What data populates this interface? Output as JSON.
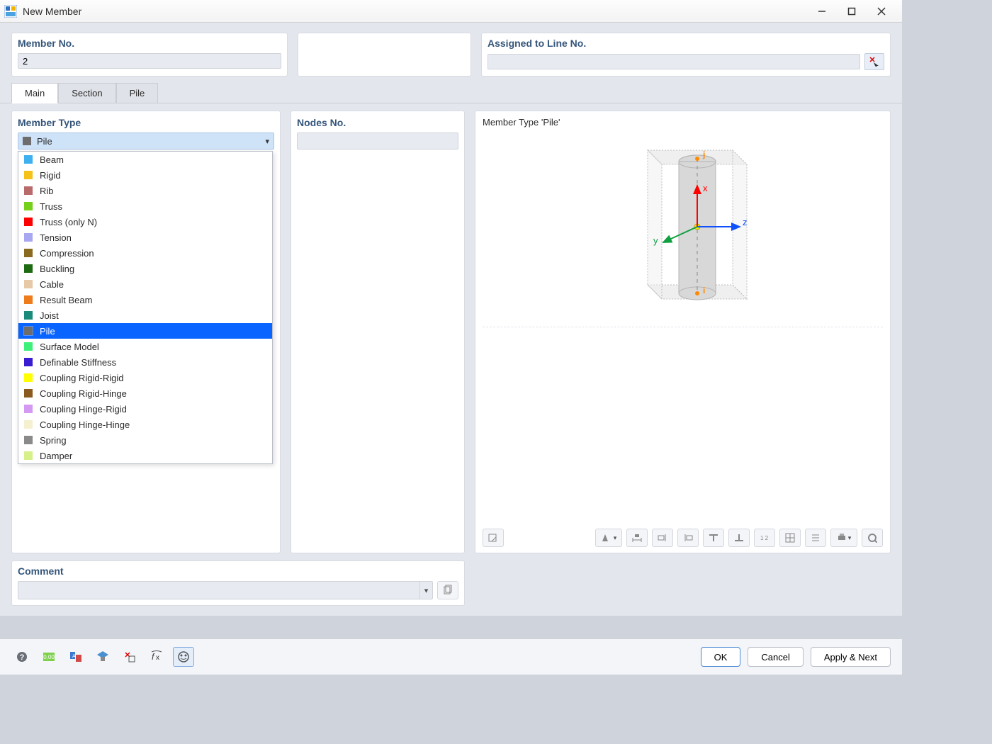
{
  "window": {
    "title": "New Member"
  },
  "top": {
    "member_no_label": "Member No.",
    "member_no_value": "2",
    "assigned_label": "Assigned to Line No.",
    "assigned_value": ""
  },
  "tabs": [
    {
      "label": "Main",
      "active": true
    },
    {
      "label": "Section",
      "active": false
    },
    {
      "label": "Pile",
      "active": false
    }
  ],
  "member_type": {
    "title": "Member Type",
    "selected_label": "Pile",
    "selected_color": "#6d6d6d",
    "options": [
      {
        "label": "Beam",
        "color": "#3eb0f0"
      },
      {
        "label": "Rigid",
        "color": "#f5c21a"
      },
      {
        "label": "Rib",
        "color": "#b96a6a"
      },
      {
        "label": "Truss",
        "color": "#74d01a"
      },
      {
        "label": "Truss (only N)",
        "color": "#ff0000"
      },
      {
        "label": "Tension",
        "color": "#a8a8f2"
      },
      {
        "label": "Compression",
        "color": "#8a6a1f"
      },
      {
        "label": "Buckling",
        "color": "#1e6a12"
      },
      {
        "label": "Cable",
        "color": "#e6caa8"
      },
      {
        "label": "Result Beam",
        "color": "#ee7b1c"
      },
      {
        "label": "Joist",
        "color": "#1a8a7a"
      },
      {
        "label": "Pile",
        "color": "#6d6d6d",
        "selected": true
      },
      {
        "label": "Surface Model",
        "color": "#3ef07a"
      },
      {
        "label": "Definable Stiffness",
        "color": "#3a1dd0"
      },
      {
        "label": "Coupling Rigid-Rigid",
        "color": "#ffff00"
      },
      {
        "label": "Coupling Rigid-Hinge",
        "color": "#8a5a1f"
      },
      {
        "label": "Coupling Hinge-Rigid",
        "color": "#d49af2"
      },
      {
        "label": "Coupling Hinge-Hinge",
        "color": "#f4f0d0"
      },
      {
        "label": "Spring",
        "color": "#8a8a8a"
      },
      {
        "label": "Damper",
        "color": "#d6f08a"
      }
    ]
  },
  "nodes": {
    "title": "Nodes No.",
    "value": ""
  },
  "preview": {
    "title": "Member Type 'Pile'",
    "axis_labels": {
      "x": "x",
      "y": "y",
      "z": "z",
      "i": "i",
      "j": "j"
    },
    "colors": {
      "box": "#efefef",
      "box_border": "#bdbdbd",
      "cylinder": "#d8d8d8",
      "cylinder_edge": "#b5b5b5",
      "x_axis": "#ff0000",
      "y_axis": "#10a040",
      "z_axis": "#1050ff",
      "node": "#ff8a00",
      "center": "#ffe600"
    }
  },
  "right_tools": [
    {
      "name": "attach-icon"
    },
    {
      "name": "section-icon",
      "dropdown": true
    },
    {
      "name": "dimension-icon"
    },
    {
      "name": "offset-left-icon"
    },
    {
      "name": "offset-right-icon"
    },
    {
      "name": "beam-top-icon"
    },
    {
      "name": "beam-bottom-icon"
    },
    {
      "name": "list-icon"
    },
    {
      "name": "grid-icon"
    },
    {
      "name": "properties-icon"
    },
    {
      "name": "print-icon",
      "dropdown": true
    },
    {
      "name": "reset-view-icon"
    }
  ],
  "comment": {
    "title": "Comment",
    "value": ""
  },
  "footer": {
    "icons": [
      {
        "name": "help-icon"
      },
      {
        "name": "units-icon"
      },
      {
        "name": "language-icon"
      },
      {
        "name": "display-icon"
      },
      {
        "name": "pick-icon"
      },
      {
        "name": "fx-icon"
      },
      {
        "name": "ai-icon",
        "active": true
      }
    ],
    "ok": "OK",
    "cancel": "Cancel",
    "apply_next": "Apply & Next"
  }
}
